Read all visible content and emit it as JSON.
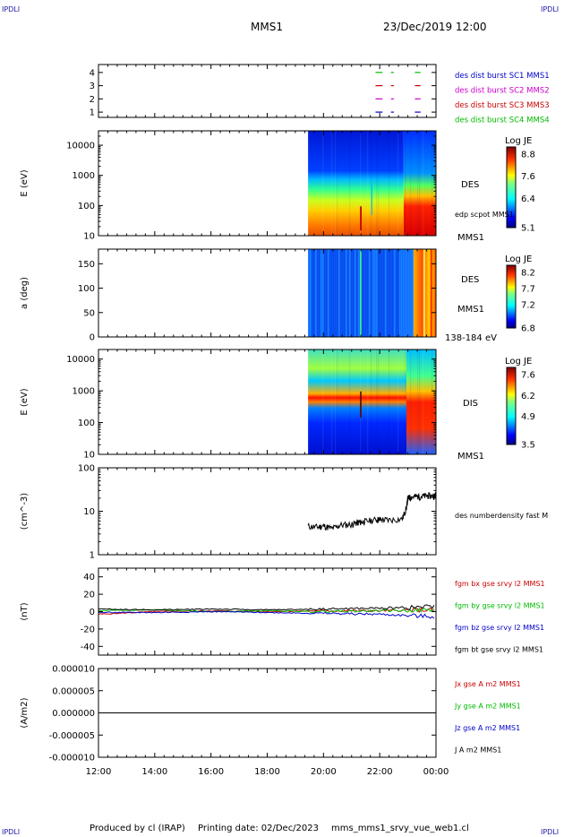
{
  "header": {
    "corner_label": "IPDLI",
    "spacecraft": "MMS1",
    "datetime": "23/Dec/2019 12:00"
  },
  "footer": {
    "produced_by": "Produced by cl (IRAP)",
    "printing_date": "Printing date: 02/Dec/2023",
    "file": "mms_mms1_srvy_vue_web1.cl"
  },
  "chart_data": [
    {
      "type": "line",
      "id": "burst",
      "yticks": [
        1,
        2,
        3,
        4
      ],
      "ylim": [
        0.6,
        4.6
      ],
      "legend_placement": "right",
      "series": [
        {
          "name": "des dist burst SC1 MMS1",
          "color": "#0000cc",
          "y": 1
        },
        {
          "name": "des dist burst SC2 MMS2",
          "color": "#cc00cc",
          "y": 2
        },
        {
          "name": "des dist burst SC3 MMS3",
          "color": "#cc0000",
          "y": 3
        },
        {
          "name": "des dist burst SC4 MMS4",
          "color": "#00bb00",
          "y": 4
        }
      ],
      "intervals_hours": [
        [
          9.85,
          10.1
        ],
        [
          10.4,
          10.5
        ],
        [
          11.25,
          11.45
        ]
      ]
    },
    {
      "type": "heatmap",
      "id": "des_energy",
      "ylabel": "E (eV)",
      "yscale": "log",
      "ylim": [
        10,
        30000
      ],
      "yticks": [
        "10",
        "100",
        "1000",
        "10000"
      ],
      "data_start_hour": 7.45,
      "right_labels": [
        "DES",
        "edp scpot MMS1",
        "MMS1"
      ],
      "colorbar": {
        "title": "Log JE",
        "ticks": [
          "8.8",
          "7.6",
          "6.4",
          "5.1"
        ],
        "range": [
          5.1,
          8.8
        ]
      }
    },
    {
      "type": "heatmap",
      "id": "des_pitch",
      "ylabel": "a (deg)",
      "ylim": [
        0,
        180
      ],
      "yticks": [
        "0",
        "50",
        "100",
        "150"
      ],
      "data_start_hour": 7.45,
      "right_labels": [
        "DES",
        "MMS1",
        "138-184 eV"
      ],
      "colorbar": {
        "title": "Log JE",
        "ticks": [
          "8.2",
          "7.7",
          "7.2",
          "6.8"
        ],
        "range": [
          6.8,
          8.2
        ]
      }
    },
    {
      "type": "heatmap",
      "id": "dis_energy",
      "ylabel": "E (eV)",
      "yscale": "log",
      "ylim": [
        10,
        20000
      ],
      "yticks": [
        "10",
        "100",
        "1000",
        "10000"
      ],
      "data_start_hour": 7.45,
      "right_labels": [
        "DIS",
        "MMS1"
      ],
      "colorbar": {
        "title": "Log JE",
        "ticks": [
          "7.6",
          "6.2",
          "4.9",
          "3.5"
        ],
        "range": [
          3.5,
          7.6
        ]
      }
    },
    {
      "type": "line",
      "id": "density",
      "ylabel": "(cm^-3)",
      "yscale": "log",
      "ylim": [
        1,
        100
      ],
      "yticks": [
        "1",
        "10",
        "100"
      ],
      "series": [
        {
          "name": "des numberdensity fast M",
          "color": "#000000",
          "x": [
            7.45,
            7.8,
            8.0,
            8.3,
            8.6,
            9.0,
            9.2,
            9.3,
            9.5,
            9.9,
            10.0,
            10.3,
            10.8,
            10.95,
            11.0,
            11.1,
            11.3,
            11.5,
            11.7,
            11.9,
            12.0
          ],
          "y": [
            4.5,
            4.3,
            4.6,
            4.0,
            4.8,
            5.0,
            5.5,
            5.6,
            5.9,
            6.4,
            6.5,
            6.3,
            6.6,
            12.0,
            20.0,
            21.0,
            22.0,
            22.0,
            23.0,
            22.0,
            24.0
          ]
        }
      ]
    },
    {
      "type": "line",
      "id": "magnetic",
      "ylabel": "(nT)",
      "ylim": [
        -50,
        50
      ],
      "yticks": [
        "-40",
        "-20",
        "0",
        "20",
        "40"
      ],
      "series": [
        {
          "name": "fgm bx gse srvy l2 MMS1",
          "color": "#cc0000",
          "x": [
            0,
            2,
            4,
            6,
            8,
            10,
            12
          ],
          "y": [
            -3,
            0,
            1,
            0,
            1,
            1,
            2
          ]
        },
        {
          "name": "fgm by gse srvy l2 MMS1",
          "color": "#00bb00",
          "x": [
            0,
            2,
            4,
            6,
            8,
            10,
            12
          ],
          "y": [
            1,
            2,
            0,
            1,
            0,
            1,
            2
          ]
        },
        {
          "name": "fgm bz gse srvy l2 MMS1",
          "color": "#0000cc",
          "x": [
            0,
            2,
            4,
            6,
            8,
            10,
            12
          ],
          "y": [
            -1,
            -1,
            0,
            -1,
            -2,
            -3,
            -6
          ]
        },
        {
          "name": "fgm bt gse srvy l2 MMS1",
          "color": "#000000",
          "x": [
            0,
            2,
            4,
            6,
            8,
            10,
            12
          ],
          "y": [
            3,
            2,
            3,
            2,
            3,
            4,
            6
          ]
        }
      ]
    },
    {
      "type": "line",
      "id": "current",
      "ylabel": "(A/m2)",
      "ylim": [
        -1e-05,
        1e-05
      ],
      "yticks": [
        "0.000010",
        "0.000005",
        "0.000000",
        "-0.000005",
        "-0.000010"
      ],
      "series": [
        {
          "name": "Jx gse A m2 MMS1",
          "color": "#cc0000",
          "x": [
            0,
            12
          ],
          "y": [
            0,
            0
          ]
        },
        {
          "name": "Jy gse A m2 MMS1",
          "color": "#00bb00",
          "x": [
            0,
            12
          ],
          "y": [
            0,
            0
          ]
        },
        {
          "name": "Jz gse A m2 MMS1",
          "color": "#0000cc",
          "x": [
            0,
            12
          ],
          "y": [
            0,
            0
          ]
        },
        {
          "name": "J A m2 MMS1",
          "color": "#000000",
          "x": [
            0,
            12
          ],
          "y": [
            0,
            0
          ]
        }
      ]
    }
  ],
  "xaxis": {
    "ticks": [
      "12:00",
      "14:00",
      "16:00",
      "18:00",
      "20:00",
      "22:00",
      "00:00"
    ],
    "range_hours": [
      0,
      12
    ]
  }
}
